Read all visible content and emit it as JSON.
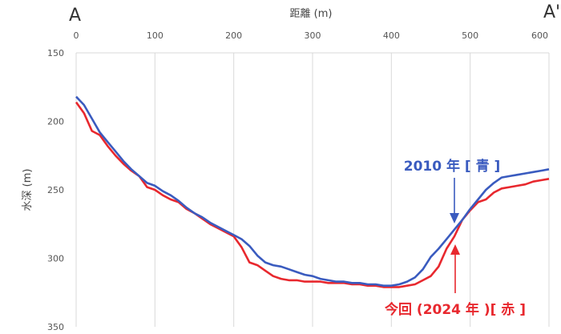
{
  "chart_data": {
    "type": "line",
    "title": "",
    "xlabel": "距離 (m)",
    "ylabel": "水深 (m)",
    "x_axis_position": "top",
    "xlim": [
      0,
      600
    ],
    "ylim": [
      150,
      350
    ],
    "y_inverted": true,
    "x_ticks": [
      0,
      100,
      200,
      300,
      400,
      500,
      600
    ],
    "y_ticks": [
      150,
      200,
      250,
      300,
      350
    ],
    "grid": "vertical",
    "endpoint_labels": {
      "left": "A",
      "right": "A'"
    },
    "series": [
      {
        "name": "2010 年 [ 青 ]",
        "color": "#3a5bbf",
        "x": [
          0,
          10,
          20,
          30,
          40,
          50,
          60,
          70,
          80,
          90,
          100,
          110,
          120,
          130,
          140,
          150,
          160,
          170,
          180,
          190,
          200,
          210,
          220,
          230,
          240,
          250,
          260,
          270,
          280,
          290,
          300,
          310,
          320,
          330,
          340,
          350,
          360,
          370,
          380,
          390,
          400,
          410,
          420,
          430,
          440,
          450,
          460,
          470,
          480,
          490,
          500,
          510,
          520,
          530,
          540,
          550,
          560,
          570,
          580,
          590,
          600
        ],
        "y": [
          182,
          188,
          198,
          208,
          215,
          222,
          229,
          235,
          240,
          245,
          247,
          251,
          254,
          258,
          263,
          267,
          270,
          274,
          277,
          280,
          283,
          286,
          291,
          298,
          303,
          305,
          306,
          308,
          310,
          312,
          313,
          315,
          316,
          317,
          317,
          318,
          318,
          319,
          319,
          320,
          320,
          319,
          317,
          314,
          308,
          299,
          293,
          286,
          279,
          272,
          264,
          257,
          250,
          245,
          241,
          240,
          239,
          238,
          237,
          236,
          235
        ]
      },
      {
        "name": "今回 (2024 年 )[ 赤 ]",
        "color": "#e8282e",
        "x": [
          0,
          10,
          20,
          30,
          40,
          50,
          60,
          70,
          80,
          90,
          100,
          110,
          120,
          130,
          140,
          150,
          160,
          170,
          180,
          190,
          200,
          210,
          220,
          230,
          240,
          250,
          260,
          270,
          280,
          290,
          300,
          310,
          320,
          330,
          340,
          350,
          360,
          370,
          380,
          390,
          400,
          410,
          420,
          430,
          440,
          450,
          460,
          470,
          480,
          490,
          500,
          510,
          520,
          530,
          540,
          550,
          560,
          570,
          580,
          590,
          600
        ],
        "y": [
          186,
          194,
          207,
          210,
          218,
          225,
          231,
          236,
          240,
          248,
          250,
          254,
          257,
          259,
          264,
          267,
          271,
          275,
          278,
          281,
          284,
          292,
          303,
          305,
          309,
          313,
          315,
          316,
          316,
          317,
          317,
          317,
          318,
          318,
          318,
          319,
          319,
          320,
          320,
          321,
          321,
          321,
          320,
          319,
          316,
          313,
          306,
          293,
          284,
          272,
          265,
          259,
          257,
          252,
          249,
          248,
          247,
          246,
          244,
          243,
          242
        ]
      }
    ]
  }
}
